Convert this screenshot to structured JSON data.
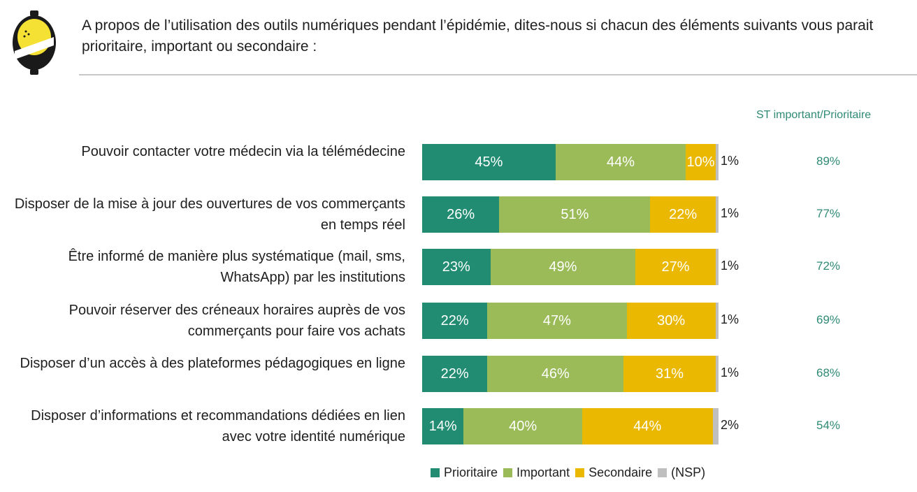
{
  "header": {
    "question": "A propos de l’utilisation des outils numériques pendant l’épidémie, dites-nous si chacun des éléments suivants vous parait prioritaire, important ou secondaire :",
    "summary_column_title": "ST important/Prioritaire"
  },
  "colors": {
    "Prioritaire": "#218c72",
    "Important": "#9bbb59",
    "Secondaire": "#eab800",
    "NSP": "#bfbfbf",
    "summary_text": "#2f8a74",
    "logo_dark": "#1a1a1a",
    "logo_yellow": "#f5e133"
  },
  "chart_data": {
    "type": "bar",
    "orientation": "horizontal",
    "stacked": true,
    "categories": [
      "Pouvoir contacter votre médecin via la télémédecine",
      "Disposer de la mise à jour des ouvertures de vos commerçants en temps réel",
      "Être informé de manière plus systématique (mail, sms, WhatsApp) par les institutions",
      "Pouvoir réserver des créneaux horaires auprès de vos commerçants pour faire vos achats",
      "Disposer d’un accès à des plateformes pédagogiques en ligne",
      "Disposer d’informations et recommandations dédiées en lien avec votre identité numérique"
    ],
    "series": [
      {
        "name": "Prioritaire",
        "values": [
          45,
          26,
          23,
          22,
          22,
          14
        ]
      },
      {
        "name": "Important",
        "values": [
          44,
          51,
          49,
          47,
          46,
          40
        ]
      },
      {
        "name": "Secondaire",
        "values": [
          10,
          22,
          27,
          30,
          31,
          44
        ]
      },
      {
        "name": "(NSP)",
        "values": [
          1,
          1,
          1,
          1,
          1,
          2
        ]
      }
    ],
    "value_suffix": "%",
    "summary": {
      "title": "ST important/Prioritaire",
      "values": [
        "89%",
        "77%",
        "72%",
        "69%",
        "68%",
        "54%"
      ]
    },
    "legend": [
      "Prioritaire",
      "Important",
      "Secondaire",
      "(NSP)"
    ],
    "legend_position": "bottom",
    "xlim": [
      0,
      100
    ],
    "grid": false
  }
}
